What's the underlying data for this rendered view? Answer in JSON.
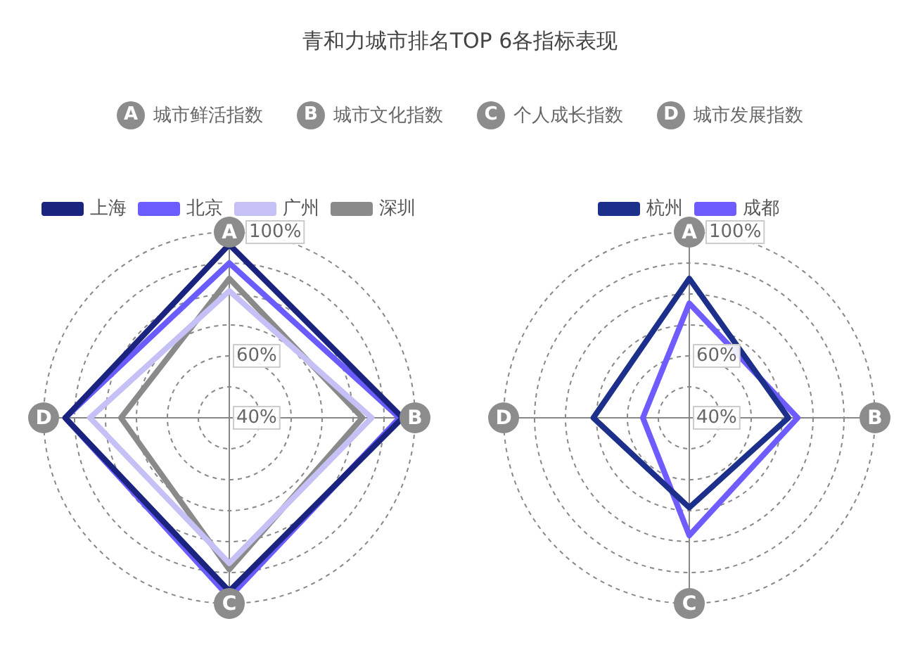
{
  "chart_data": [
    {
      "type": "radar",
      "title": "青和力城市排名TOP 6各指标表现",
      "annotations": [
        "城市鲜活指数",
        "城市文化指数",
        "个人成长指数",
        "城市发展指数"
      ],
      "categories": [
        "A",
        "B",
        "C",
        "D"
      ],
      "series": [
        {
          "name": "上海",
          "color": "#1a237e",
          "values": [
            96,
            96,
            96,
            93
          ]
        },
        {
          "name": "北京",
          "color": "#6b5cff",
          "values": [
            90,
            95,
            98,
            93
          ]
        },
        {
          "name": "广州",
          "color": "#c5c0f5",
          "values": [
            81,
            86,
            87,
            85
          ]
        },
        {
          "name": "深圳",
          "color": "#8a8a8a",
          "values": [
            85,
            83,
            89,
            75
          ]
        }
      ],
      "ylim": [
        40,
        100
      ],
      "yticks": [
        {
          "value": 40,
          "label": "40%"
        },
        {
          "value": 60,
          "label": "60%"
        },
        {
          "value": 100,
          "label": "100%"
        }
      ],
      "grid": true,
      "legend": "top",
      "marker": "none"
    },
    {
      "type": "radar",
      "categories": [
        "A",
        "B",
        "C",
        "D"
      ],
      "series": [
        {
          "name": "杭州",
          "color": "#1c2f8a",
          "values": [
            85,
            72,
            69,
            71
          ]
        },
        {
          "name": "成都",
          "color": "#6e5cff",
          "values": [
            77,
            75,
            78,
            55
          ]
        }
      ],
      "ylim": [
        40,
        100
      ],
      "yticks": [
        {
          "value": 40,
          "label": "40%"
        },
        {
          "value": 60,
          "label": "60%"
        },
        {
          "value": 100,
          "label": "100%"
        }
      ],
      "grid": true,
      "legend": "top",
      "marker": "none"
    }
  ]
}
